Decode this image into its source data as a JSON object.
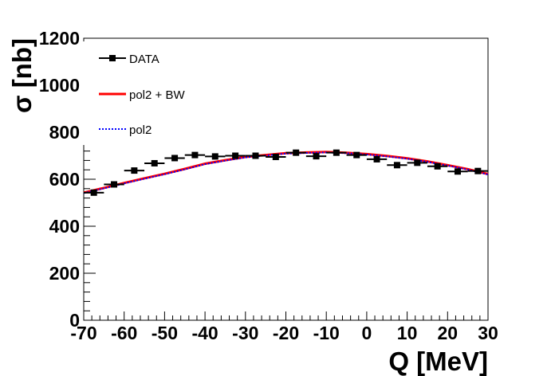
{
  "chart_data": {
    "type": "line",
    "title": "",
    "xlabel": "Q [MeV]",
    "ylabel": "σ [nb]",
    "xlim": [
      -70,
      30
    ],
    "ylim": [
      0,
      1200
    ],
    "x_ticks": [
      -70,
      -60,
      -50,
      -40,
      -30,
      -20,
      -10,
      0,
      10,
      20,
      30
    ],
    "y_ticks": [
      0,
      200,
      400,
      600,
      800,
      1000,
      1200
    ],
    "grid": false,
    "legend_position": "top-left",
    "series": [
      {
        "name": "DATA",
        "kind": "points-with-xerrors",
        "color": "#000000",
        "x_halfwidth": 2.5,
        "x": [
          -67.5,
          -62.5,
          -57.5,
          -52.5,
          -47.5,
          -42.5,
          -37.5,
          -32.5,
          -27.5,
          -22.5,
          -17.5,
          -12.5,
          -7.5,
          -2.5,
          2.5,
          7.5,
          12.5,
          17.5,
          22.5,
          27.5
        ],
        "y": [
          543,
          578,
          637,
          668,
          690,
          703,
          697,
          700,
          700,
          695,
          713,
          698,
          713,
          703,
          685,
          660,
          670,
          655,
          633,
          635
        ]
      },
      {
        "name": "pol2 + BW",
        "kind": "line",
        "color": "#ff0000",
        "style": "solid",
        "x": [
          -70,
          -65,
          -60,
          -55,
          -50,
          -45,
          -40,
          -35,
          -30,
          -25,
          -20,
          -15,
          -10,
          -5,
          0,
          5,
          10,
          15,
          20,
          25,
          30
        ],
        "y": [
          543,
          563,
          584,
          604,
          623,
          644,
          666,
          681,
          695,
          703,
          711,
          714,
          716,
          713,
          707,
          699,
          689,
          676,
          660,
          643,
          622
        ]
      },
      {
        "name": "pol2",
        "kind": "line",
        "color": "#0000ff",
        "style": "dotted",
        "x": [
          -70,
          -65,
          -60,
          -55,
          -50,
          -45,
          -40,
          -35,
          -30,
          -25,
          -20,
          -15,
          -10,
          -5,
          0,
          5,
          10,
          15,
          20,
          25,
          30
        ],
        "y": [
          541,
          561,
          582,
          602,
          621,
          642,
          664,
          679,
          693,
          701,
          709,
          712,
          714,
          711,
          705,
          697,
          687,
          674,
          658,
          641,
          620
        ]
      }
    ]
  }
}
